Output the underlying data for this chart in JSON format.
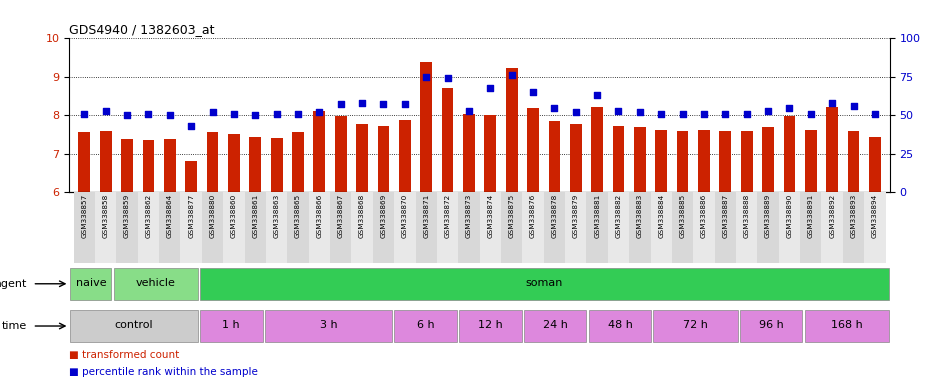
{
  "title": "GDS4940 / 1382603_at",
  "samples": [
    "GSM338857",
    "GSM338858",
    "GSM338859",
    "GSM338862",
    "GSM338864",
    "GSM338877",
    "GSM338880",
    "GSM338860",
    "GSM338861",
    "GSM338863",
    "GSM338865",
    "GSM338866",
    "GSM338867",
    "GSM338868",
    "GSM338869",
    "GSM338870",
    "GSM338871",
    "GSM338872",
    "GSM338873",
    "GSM338874",
    "GSM338875",
    "GSM338876",
    "GSM338878",
    "GSM338879",
    "GSM338881",
    "GSM338882",
    "GSM338883",
    "GSM338884",
    "GSM338885",
    "GSM338886",
    "GSM338887",
    "GSM338888",
    "GSM338889",
    "GSM338890",
    "GSM338891",
    "GSM338892",
    "GSM338893",
    "GSM338894"
  ],
  "bar_values": [
    7.55,
    7.6,
    7.38,
    7.35,
    7.38,
    6.82,
    7.55,
    7.5,
    7.42,
    7.4,
    7.55,
    8.1,
    7.98,
    7.78,
    7.72,
    7.88,
    9.38,
    8.72,
    8.02,
    8.0,
    9.22,
    8.2,
    7.85,
    7.78,
    8.22,
    7.72,
    7.68,
    7.62,
    7.58,
    7.62,
    7.6,
    7.58,
    7.68,
    7.98,
    7.62,
    8.22,
    7.58,
    7.42
  ],
  "dot_values": [
    51,
    53,
    50,
    51,
    50,
    43,
    52,
    51,
    50,
    51,
    51,
    52,
    57,
    58,
    57,
    57,
    75,
    74,
    53,
    68,
    76,
    65,
    55,
    52,
    63,
    53,
    52,
    51,
    51,
    51,
    51,
    51,
    53,
    55,
    51,
    58,
    56,
    51
  ],
  "bar_color": "#cc2200",
  "dot_color": "#0000cc",
  "ylim_left": [
    6,
    10
  ],
  "ylim_right": [
    0,
    100
  ],
  "yticks_left": [
    6,
    7,
    8,
    9,
    10
  ],
  "yticks_right": [
    0,
    25,
    50,
    75,
    100
  ],
  "agent_groups": [
    {
      "label": "naive",
      "start": 0,
      "end": 2,
      "color": "#88dd88"
    },
    {
      "label": "vehicle",
      "start": 2,
      "end": 6,
      "color": "#88dd88"
    },
    {
      "label": "soman",
      "start": 6,
      "end": 38,
      "color": "#33cc55"
    }
  ],
  "time_groups": [
    {
      "label": "control",
      "start": 0,
      "end": 6,
      "color": "#cccccc"
    },
    {
      "label": "1 h",
      "start": 6,
      "end": 9,
      "color": "#dd88dd"
    },
    {
      "label": "3 h",
      "start": 9,
      "end": 15,
      "color": "#dd88dd"
    },
    {
      "label": "6 h",
      "start": 15,
      "end": 18,
      "color": "#dd88dd"
    },
    {
      "label": "12 h",
      "start": 18,
      "end": 21,
      "color": "#dd88dd"
    },
    {
      "label": "24 h",
      "start": 21,
      "end": 24,
      "color": "#dd88dd"
    },
    {
      "label": "48 h",
      "start": 24,
      "end": 27,
      "color": "#dd88dd"
    },
    {
      "label": "72 h",
      "start": 27,
      "end": 31,
      "color": "#dd88dd"
    },
    {
      "label": "96 h",
      "start": 31,
      "end": 34,
      "color": "#dd88dd"
    },
    {
      "label": "168 h",
      "start": 34,
      "end": 38,
      "color": "#dd88dd"
    }
  ],
  "agent_row_label": "agent",
  "time_row_label": "time",
  "legend_bar": "transformed count",
  "legend_dot": "percentile rank within the sample"
}
